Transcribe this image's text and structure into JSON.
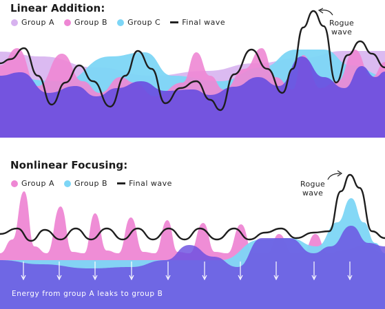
{
  "linear": {
    "title": "Linear Addition:",
    "legend": [
      {
        "label": "Group A",
        "color": "#d7b2ef"
      },
      {
        "label": "Group B",
        "color": "#ee87d4"
      },
      {
        "label": "Group C",
        "color": "#7dd6f6"
      }
    ],
    "final_label": "Final wave",
    "rogue_label_line1": "Rogue",
    "rogue_label_line2": "wave"
  },
  "nonlinear": {
    "title": "Nonlinear Focusing:",
    "legend": [
      {
        "label": "Group A",
        "color": "#ee87d4"
      },
      {
        "label": "Group B",
        "color": "#7dd6f6"
      }
    ],
    "final_label": "Final wave",
    "rogue_label_line1": "Rogue",
    "rogue_label_line2": "wave",
    "energy_caption": "Energy from group A leaks to group B"
  },
  "colors": {
    "base_purple": "#6a4fe0",
    "final_line": "#1e1e1e"
  }
}
